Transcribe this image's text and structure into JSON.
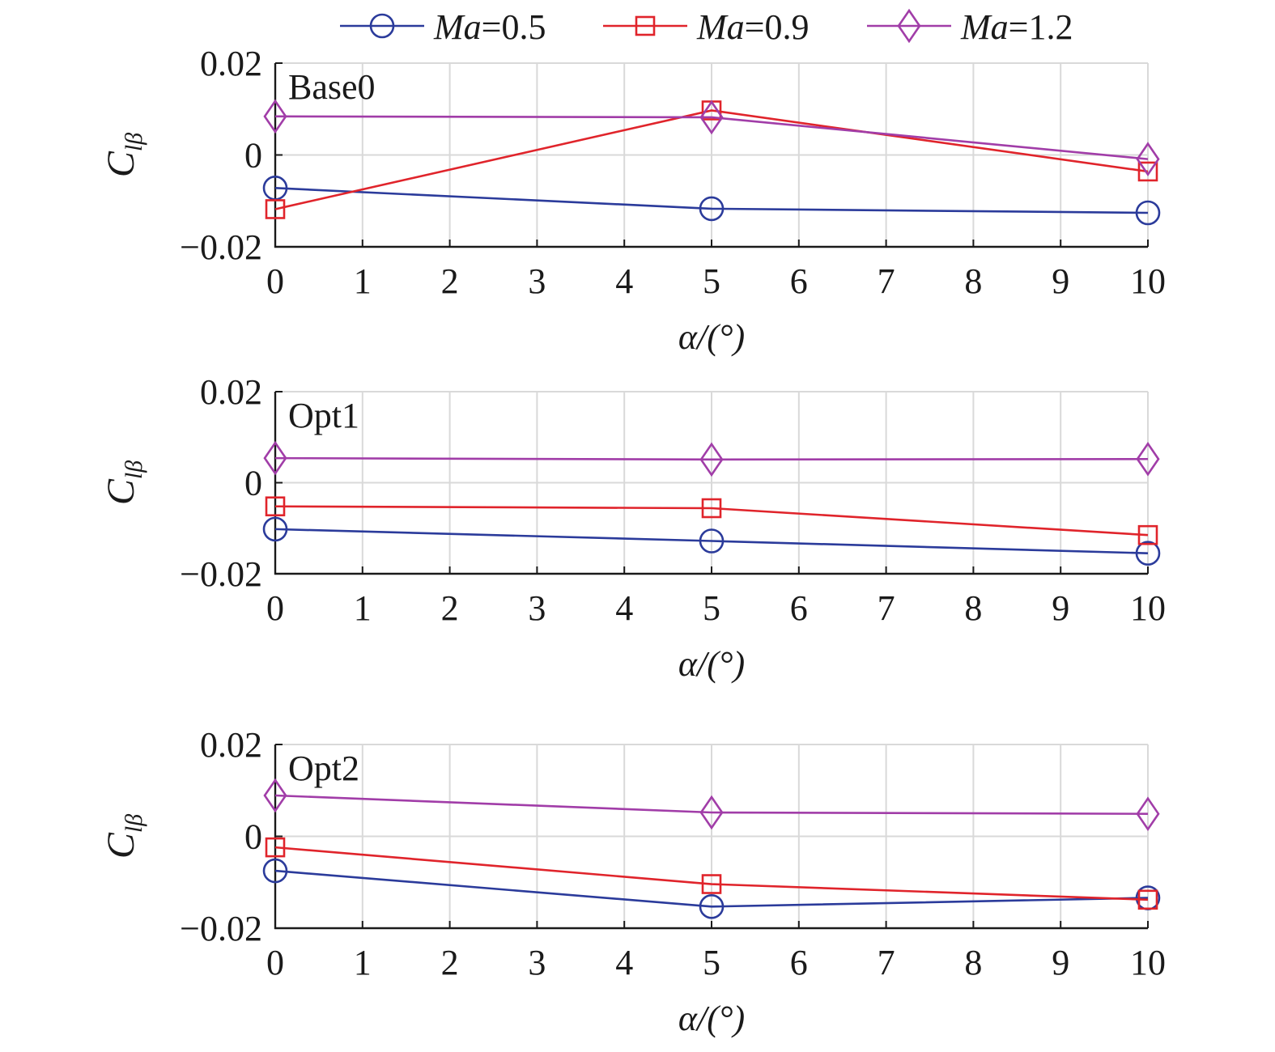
{
  "chart_data": [
    {
      "type": "line",
      "title": "Base0",
      "xlabel": "α/(°)",
      "ylabel": {
        "main": "C",
        "sub": "lβ"
      },
      "xlim": [
        0,
        10
      ],
      "ylim": [
        -0.02,
        0.02
      ],
      "xticks": [
        0,
        1,
        2,
        3,
        4,
        5,
        6,
        7,
        8,
        9,
        10
      ],
      "yticks": [
        -0.02,
        0,
        0.02
      ],
      "ytick_labels": [
        "−0.02",
        "0",
        "0.02"
      ],
      "grid": true,
      "x": [
        0,
        5,
        10
      ],
      "series": [
        {
          "name": "Ma=0.5",
          "color": "#2b3b9b",
          "marker": "circle",
          "values": [
            -0.0072,
            -0.0117,
            -0.0126
          ]
        },
        {
          "name": "Ma=0.9",
          "color": "#e0242b",
          "marker": "square",
          "values": [
            -0.0118,
            0.0097,
            -0.0036
          ]
        },
        {
          "name": "Ma=1.2",
          "color": "#a13da8",
          "marker": "diamond",
          "values": [
            0.0084,
            0.0082,
            -0.0009
          ]
        }
      ]
    },
    {
      "type": "line",
      "title": "Opt1",
      "xlabel": "α/(°)",
      "ylabel": {
        "main": "C",
        "sub": "lβ"
      },
      "xlim": [
        0,
        10
      ],
      "ylim": [
        -0.02,
        0.02
      ],
      "xticks": [
        0,
        1,
        2,
        3,
        4,
        5,
        6,
        7,
        8,
        9,
        10
      ],
      "yticks": [
        -0.02,
        0,
        0.02
      ],
      "ytick_labels": [
        "−0.02",
        "0",
        "0.02"
      ],
      "grid": true,
      "x": [
        0,
        5,
        10
      ],
      "series": [
        {
          "name": "Ma=0.5",
          "color": "#2b3b9b",
          "marker": "circle",
          "values": [
            -0.0102,
            -0.0128,
            -0.0155
          ]
        },
        {
          "name": "Ma=0.9",
          "color": "#e0242b",
          "marker": "square",
          "values": [
            -0.0052,
            -0.0056,
            -0.0115
          ]
        },
        {
          "name": "Ma=1.2",
          "color": "#a13da8",
          "marker": "diamond",
          "values": [
            0.0054,
            0.0051,
            0.0052
          ]
        }
      ]
    },
    {
      "type": "line",
      "title": "Opt2",
      "xlabel": "α/(°)",
      "ylabel": {
        "main": "C",
        "sub": "lβ"
      },
      "xlim": [
        0,
        10
      ],
      "ylim": [
        -0.02,
        0.02
      ],
      "xticks": [
        0,
        1,
        2,
        3,
        4,
        5,
        6,
        7,
        8,
        9,
        10
      ],
      "yticks": [
        -0.02,
        0,
        0.02
      ],
      "ytick_labels": [
        "−0.02",
        "0",
        "0.02"
      ],
      "grid": true,
      "x": [
        0,
        5,
        10
      ],
      "series": [
        {
          "name": "Ma=0.5",
          "color": "#2b3b9b",
          "marker": "circle",
          "values": [
            -0.0075,
            -0.0153,
            -0.0134
          ]
        },
        {
          "name": "Ma=0.9",
          "color": "#e0242b",
          "marker": "square",
          "values": [
            -0.0024,
            -0.0104,
            -0.0138
          ]
        },
        {
          "name": "Ma=1.2",
          "color": "#a13da8",
          "marker": "diamond",
          "values": [
            0.0089,
            0.0052,
            0.0049
          ]
        }
      ]
    }
  ],
  "legend": {
    "position": "top-center",
    "items": [
      {
        "var": "Ma",
        "rest": "=0.5",
        "color": "#2b3b9b",
        "marker": "circle"
      },
      {
        "var": "Ma",
        "rest": "=0.9",
        "color": "#e0242b",
        "marker": "square"
      },
      {
        "var": "Ma",
        "rest": "=1.2",
        "color": "#a13da8",
        "marker": "diamond"
      }
    ]
  }
}
